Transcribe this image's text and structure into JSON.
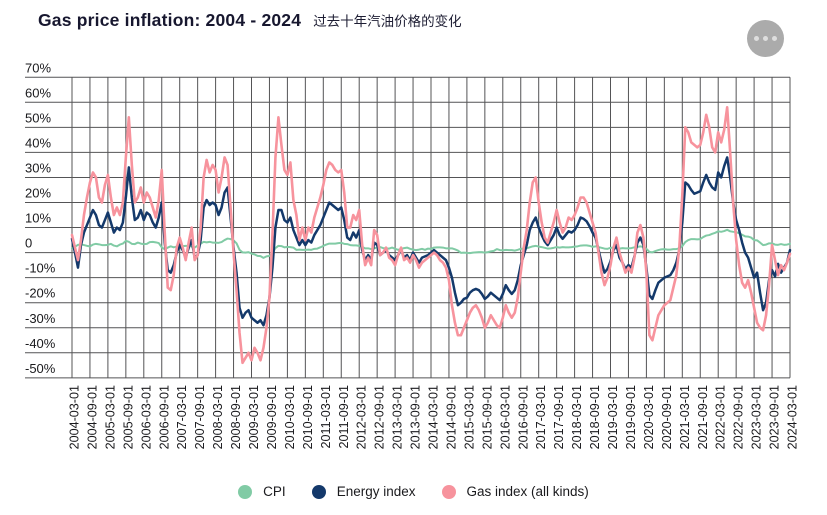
{
  "header": {
    "title": "Gas price inflation: 2004 - 2024",
    "subtitle_zh": "过去十年汽油价格的变化",
    "menu_icon": "ellipsis-icon"
  },
  "colors": {
    "background": "#ffffff",
    "grid": "#545456",
    "axis_text": "#1a1a1d",
    "title_text": "#17172f",
    "menu_button": "#ababab",
    "menu_dots": "#dedede",
    "cpi": "#81cba5",
    "energy": "#14396b",
    "gas": "#f7939d"
  },
  "chart_data": {
    "type": "line",
    "title": "Gas price inflation: 2004 - 2024",
    "subtitle": "过去十年汽油价格的变化",
    "grid": true,
    "legend_position": "bottom",
    "y_axis": {
      "min": -50,
      "max": 70,
      "tick_step": 10,
      "tick_labels": [
        "70%",
        "60%",
        "50%",
        "40%",
        "30%",
        "20%",
        "10%",
        "0",
        "-10%",
        "-20%",
        "-30%",
        "-40%",
        "-50%"
      ],
      "tick_values": [
        70,
        60,
        50,
        40,
        30,
        20,
        10,
        0,
        -10,
        -20,
        -30,
        -40,
        -50
      ]
    },
    "x_axis": {
      "start": "2004-03-01",
      "end": "2024-03-01",
      "points_per_series": 241,
      "tick_labels": [
        "2004-03-01",
        "2004-09-01",
        "2005-03-01",
        "2005-09-01",
        "2006-03-01",
        "2006-09-01",
        "2007-03-01",
        "2007-09-01",
        "2008-03-01",
        "2008-09-01",
        "2009-03-01",
        "2009-09-01",
        "2010-03-01",
        "2010-09-01",
        "2011-03-01",
        "2011-09-01",
        "2012-03-01",
        "2012-09-01",
        "2013-03-01",
        "2013-09-01",
        "2014-03-01",
        "2014-09-01",
        "2015-03-01",
        "2015-09-01",
        "2016-03-01",
        "2016-09-01",
        "2017-03-01",
        "2017-09-01",
        "2018-03-01",
        "2018-09-01",
        "2019-03-01",
        "2019-09-01",
        "2020-03-01",
        "2020-09-01",
        "2021-03-01",
        "2021-09-01",
        "2022-03-01",
        "2022-09-01",
        "2023-03-01",
        "2023-09-01",
        "2024-03-01"
      ]
    },
    "series": [
      {
        "name": "CPI",
        "color": "#81cba5",
        "values": [
          1.7,
          2.3,
          3.1,
          3.3,
          3.0,
          2.7,
          2.5,
          3.2,
          3.5,
          3.3,
          3.0,
          3.0,
          3.1,
          3.5,
          2.8,
          2.5,
          3.2,
          3.6,
          4.7,
          4.3,
          3.5,
          3.4,
          4.0,
          3.6,
          3.4,
          3.5,
          4.2,
          4.3,
          4.1,
          3.8,
          2.1,
          1.3,
          2.0,
          2.5,
          2.1,
          2.4,
          2.8,
          2.6,
          2.7,
          2.7,
          2.4,
          2.0,
          2.8,
          3.5,
          4.3,
          4.1,
          4.3,
          4.0,
          4.0,
          3.9,
          4.2,
          5.0,
          5.6,
          5.4,
          4.9,
          3.7,
          1.1,
          0.1,
          0.0,
          0.2,
          -0.4,
          -0.7,
          -1.3,
          -1.4,
          -2.1,
          -1.5,
          -1.3,
          -0.2,
          1.8,
          2.7,
          2.6,
          2.1,
          2.3,
          2.2,
          2.0,
          1.1,
          1.2,
          1.1,
          1.1,
          1.2,
          1.1,
          1.5,
          1.6,
          2.1,
          2.7,
          3.2,
          3.6,
          3.6,
          3.6,
          3.8,
          3.9,
          3.5,
          3.4,
          3.0,
          2.9,
          2.9,
          2.7,
          2.3,
          1.7,
          1.7,
          1.4,
          1.7,
          2.0,
          2.2,
          1.8,
          1.7,
          1.6,
          2.0,
          1.5,
          1.1,
          1.4,
          1.8,
          2.0,
          1.5,
          1.2,
          1.0,
          1.2,
          1.5,
          1.1,
          1.6,
          1.5,
          2.0,
          2.1,
          2.1,
          2.0,
          1.7,
          1.7,
          1.7,
          1.3,
          0.8,
          -0.1,
          0.0,
          -0.1,
          -0.2,
          0.0,
          0.1,
          0.2,
          0.2,
          0.0,
          0.2,
          0.5,
          0.7,
          1.4,
          1.0,
          0.9,
          1.1,
          1.0,
          1.0,
          0.8,
          1.1,
          1.5,
          1.6,
          1.7,
          2.1,
          2.5,
          2.7,
          2.4,
          2.2,
          1.9,
          1.6,
          1.7,
          1.9,
          2.2,
          2.0,
          2.2,
          2.1,
          2.1,
          2.2,
          2.4,
          2.5,
          2.8,
          2.9,
          2.9,
          2.7,
          2.3,
          2.5,
          2.2,
          1.9,
          1.6,
          1.5,
          1.9,
          2.0,
          1.8,
          1.6,
          1.8,
          1.7,
          1.7,
          1.8,
          2.1,
          2.3,
          2.5,
          2.3,
          1.5,
          0.3,
          0.1,
          0.6,
          1.0,
          1.3,
          1.4,
          1.2,
          1.2,
          1.4,
          1.4,
          1.7,
          2.6,
          4.2,
          5.0,
          5.4,
          5.4,
          5.3,
          5.4,
          6.2,
          6.8,
          7.0,
          7.5,
          7.9,
          8.5,
          8.3,
          8.6,
          9.1,
          8.5,
          8.3,
          8.2,
          7.7,
          7.1,
          6.5,
          6.4,
          6.0,
          5.0,
          4.9,
          4.0,
          3.0,
          3.2,
          3.7,
          3.7,
          3.2,
          3.1,
          3.4,
          3.1,
          3.2,
          3.5
        ]
      },
      {
        "name": "Energy index",
        "color": "#14396b",
        "values": [
          5.5,
          0,
          -6,
          3,
          8,
          11,
          14,
          17,
          15,
          11,
          10,
          13,
          16,
          12,
          8,
          10,
          9,
          12,
          22,
          34,
          22,
          13,
          14,
          17,
          13,
          16,
          15,
          12,
          10,
          14,
          20,
          4,
          -7,
          -8,
          -5,
          0,
          3,
          1,
          -2,
          2,
          5,
          -2,
          -1,
          5,
          18,
          21,
          19,
          20,
          19,
          15,
          18,
          24,
          26,
          14,
          2,
          -8,
          -22,
          -26,
          -24,
          -23,
          -26,
          -27,
          -28,
          -27,
          -29,
          -25,
          -18,
          -6,
          10,
          17,
          17,
          13,
          12,
          14,
          9,
          6,
          3,
          5,
          3,
          5,
          4,
          7,
          9,
          11,
          14,
          17,
          20,
          19,
          18,
          17,
          18,
          13,
          6,
          5,
          8,
          6,
          9,
          1,
          -3,
          -1,
          -3,
          4,
          3,
          -1,
          0,
          1,
          -1,
          -2,
          -3,
          -1,
          1,
          -2,
          -1,
          -3,
          0,
          -2,
          -4,
          -2,
          -1.5,
          -1,
          0,
          1,
          0,
          -1,
          -2,
          -3,
          -6,
          -10,
          -16,
          -21,
          -20,
          -18.5,
          -18,
          -16,
          -15,
          -14.5,
          -15,
          -16.5,
          -18.5,
          -17.5,
          -16,
          -17,
          -18,
          -19,
          -16.5,
          -13,
          -15,
          -16.5,
          -15,
          -11,
          -5,
          -1,
          3,
          9,
          12,
          14,
          10,
          7,
          4.5,
          3,
          5,
          7,
          10,
          7,
          5.5,
          7,
          8.5,
          8,
          9,
          11,
          14,
          13.5,
          12.5,
          10.5,
          8,
          6,
          1,
          -4,
          -8,
          -6.5,
          -3.5,
          1,
          3,
          -2,
          -4,
          -6.5,
          -5,
          -6,
          -1.5,
          4,
          6,
          3,
          -6,
          -17,
          -18.5,
          -15,
          -12,
          -11,
          -10,
          -9.5,
          -9,
          -7,
          -4,
          1,
          12,
          28,
          27,
          25,
          23.5,
          24,
          24.5,
          28,
          31,
          28,
          26,
          25,
          32,
          30,
          34.5,
          38,
          30,
          20,
          13,
          9,
          4,
          0,
          -2,
          -6,
          -10,
          -8,
          -16,
          -23,
          -20,
          -11,
          -7,
          -9.5,
          -4.5,
          -8,
          -6,
          -4,
          1
        ]
      },
      {
        "name": "Gas index (all kinds)",
        "color": "#f7939d",
        "values": [
          7,
          2,
          -3,
          5,
          15,
          22,
          28,
          32,
          30,
          22,
          20,
          27,
          31,
          22,
          15,
          18,
          15,
          20,
          38,
          54,
          35,
          20,
          22,
          26,
          20,
          24,
          22,
          18,
          14,
          21,
          33,
          8,
          -14,
          -15,
          -9,
          2,
          6,
          2,
          -3,
          4,
          10,
          -3,
          -1,
          10,
          30,
          37,
          32,
          35,
          33,
          24,
          30,
          38,
          35,
          18,
          0,
          -15,
          -32,
          -44,
          -42,
          -40,
          -43,
          -38,
          -40,
          -43,
          -38,
          -30,
          -18,
          7,
          38,
          54,
          43,
          33,
          31,
          36,
          21,
          15,
          5,
          10,
          5,
          10,
          8,
          14,
          18,
          22,
          27,
          33,
          36,
          35,
          33,
          32,
          33,
          24,
          10,
          10,
          15,
          13,
          17,
          3,
          -5,
          -2,
          -5,
          9,
          7,
          -1,
          0,
          2,
          -2,
          -3,
          -5,
          -1,
          2,
          -3,
          -2,
          -4,
          -1,
          -3,
          -6,
          -4,
          -3,
          -2,
          -1,
          0,
          -1,
          -3,
          -4,
          -6,
          -11,
          -21,
          -28,
          -33,
          -33,
          -30,
          -27,
          -24,
          -22,
          -21,
          -23,
          -26,
          -30,
          -28,
          -25,
          -27,
          -29,
          -30,
          -26,
          -21,
          -24,
          -26,
          -24,
          -18,
          -8,
          2,
          9,
          20,
          28,
          30,
          20,
          12,
          6,
          4,
          8,
          12,
          17,
          12,
          8,
          10,
          14,
          13,
          15,
          18,
          22,
          22,
          20,
          16,
          12,
          8,
          0,
          -8,
          -13,
          -10,
          -5,
          2,
          6,
          0,
          -4,
          -8,
          -6,
          -8,
          -2,
          8,
          11,
          6,
          -8,
          -33,
          -35,
          -30,
          -25,
          -23,
          -21,
          -20,
          -19,
          -14,
          -9,
          2,
          23,
          50,
          48,
          44,
          43,
          42,
          43,
          48,
          55,
          50,
          42,
          40,
          48,
          44,
          49,
          58,
          40,
          20,
          5,
          -5,
          -12,
          -14,
          -11,
          -16,
          -22,
          -28,
          -30,
          -31,
          -25,
          -13,
          3,
          -3,
          -9,
          -5,
          -7,
          -4,
          -0.5
        ]
      }
    ],
    "legend": [
      "CPI",
      "Energy index",
      "Gas index (all kinds)"
    ]
  }
}
